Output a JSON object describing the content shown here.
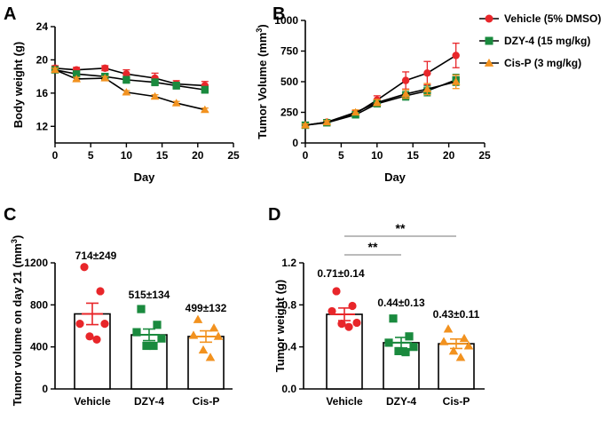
{
  "colors": {
    "vehicle": "#e8262a",
    "dzy4": "#1a8a3e",
    "cisp": "#f2921f",
    "axis": "#000000"
  },
  "legend": [
    "Vehicle (5% DMSO)",
    "DZY-4 (15 mg/kg)",
    "Cis-P (3 mg/kg)"
  ],
  "chart_data": [
    {
      "panel": "A",
      "type": "line",
      "xlabel": "Day",
      "ylabel": "Body weight  (g)",
      "xlim": [
        0,
        25
      ],
      "ylim": [
        10,
        24
      ],
      "xticks": [
        0,
        5,
        10,
        15,
        20,
        25
      ],
      "yticks": [
        12,
        16,
        20,
        24
      ],
      "series": [
        {
          "name": "Vehicle (5% DMSO)",
          "x": [
            0,
            3,
            7,
            10,
            14,
            17,
            21
          ],
          "y": [
            19.0,
            18.8,
            19.0,
            18.3,
            17.8,
            17.1,
            16.9
          ],
          "err": [
            0.3,
            0.3,
            0.3,
            0.5,
            0.6,
            0.4,
            0.5
          ]
        },
        {
          "name": "DZY-4 (15 mg/kg)",
          "x": [
            0,
            3,
            7,
            10,
            14,
            17,
            21
          ],
          "y": [
            18.8,
            18.3,
            18.0,
            17.6,
            17.3,
            16.9,
            16.4
          ],
          "err": [
            0.3,
            0.3,
            0.3,
            0.4,
            0.4,
            0.4,
            0.4
          ]
        },
        {
          "name": "Cis-P (3 mg/kg)",
          "x": [
            0,
            3,
            7,
            10,
            14,
            17,
            21
          ],
          "y": [
            18.8,
            17.7,
            17.8,
            16.1,
            15.6,
            14.8,
            14.0
          ],
          "err": [
            0.2,
            0.2,
            0.2,
            0.2,
            0.2,
            0.2,
            0.2
          ]
        }
      ]
    },
    {
      "panel": "B",
      "type": "line",
      "xlabel": "Day",
      "ylabel_main": "Tumor  Volume (mm",
      "ylabel_sup": "3",
      "ylabel_end": ")",
      "xlim": [
        0,
        25
      ],
      "ylim": [
        0,
        1000
      ],
      "xticks": [
        0,
        5,
        10,
        15,
        20,
        25
      ],
      "yticks": [
        0,
        250,
        500,
        750,
        1000
      ],
      "series": [
        {
          "name": "Vehicle (5% DMSO)",
          "x": [
            0,
            3,
            7,
            10,
            14,
            17,
            21
          ],
          "y": [
            145,
            170,
            240,
            350,
            510,
            570,
            714
          ],
          "err": [
            10,
            15,
            25,
            35,
            70,
            95,
            100
          ]
        },
        {
          "name": "DZY-4 (15 mg/kg)",
          "x": [
            0,
            3,
            7,
            10,
            14,
            17,
            21
          ],
          "y": [
            145,
            165,
            230,
            320,
            385,
            425,
            515
          ],
          "err": [
            10,
            12,
            20,
            25,
            35,
            40,
            45
          ]
        },
        {
          "name": "Cis-P (3 mg/kg)",
          "x": [
            0,
            3,
            7,
            10,
            14,
            17,
            21
          ],
          "y": [
            145,
            170,
            250,
            330,
            400,
            440,
            499
          ],
          "err": [
            10,
            12,
            20,
            25,
            35,
            45,
            55
          ]
        }
      ]
    },
    {
      "panel": "C",
      "type": "bar",
      "ylabel_main": "Tumor volume on day 21 (mm",
      "ylabel_sup": "3",
      "ylabel_end": ")",
      "ylim": [
        0,
        1200
      ],
      "yticks": [
        0,
        400,
        800,
        1200
      ],
      "categories": [
        "Vehicle",
        "DZY-4",
        "Cis-P"
      ],
      "values": [
        714,
        515,
        499
      ],
      "sem": [
        102,
        55,
        54
      ],
      "labels": [
        "714±249",
        "515±134",
        "499±132"
      ],
      "points": [
        [
          1160,
          930,
          620,
          620,
          500,
          470
        ],
        [
          760,
          610,
          540,
          480,
          410,
          410
        ],
        [
          660,
          580,
          510,
          500,
          370,
          300
        ]
      ]
    },
    {
      "panel": "D",
      "type": "bar",
      "ylabel": "Tumor weight (g)",
      "ylim": [
        0,
        1.2
      ],
      "yticks": [
        0.0,
        0.4,
        0.8,
        1.2
      ],
      "categories": [
        "Vehicle",
        "DZY-4",
        "Cis-P"
      ],
      "values": [
        0.71,
        0.44,
        0.43
      ],
      "sem": [
        0.06,
        0.05,
        0.045
      ],
      "labels": [
        "0.71±0.14",
        "0.44±0.13",
        "0.43±0.11"
      ],
      "points": [
        [
          0.93,
          0.79,
          0.74,
          0.63,
          0.62,
          0.59
        ],
        [
          0.67,
          0.5,
          0.44,
          0.4,
          0.36,
          0.35
        ],
        [
          0.57,
          0.48,
          0.45,
          0.41,
          0.36,
          0.3
        ]
      ],
      "significance": [
        {
          "label": "**",
          "from": 0,
          "to": 1
        },
        {
          "label": "**",
          "from": 0,
          "to": 2
        }
      ]
    }
  ]
}
